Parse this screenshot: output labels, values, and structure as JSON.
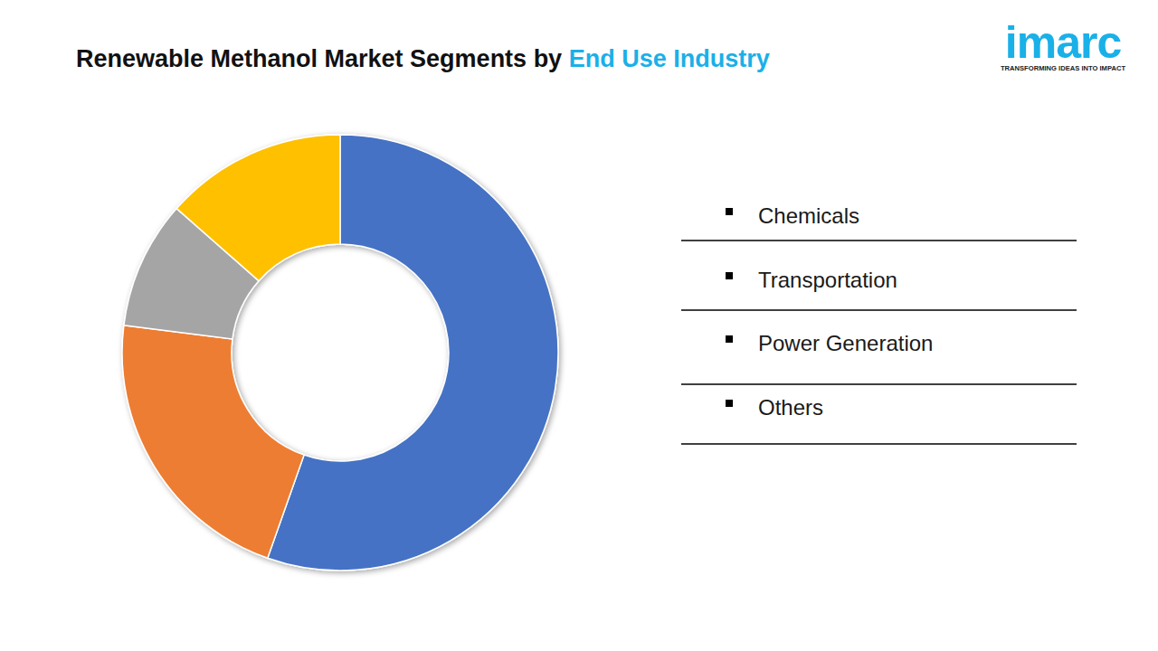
{
  "chart_data": {
    "type": "donut",
    "title": "Renewable Methanol Market Segments by End Use Industry",
    "title_highlight": "End Use Industry",
    "categories": [
      "Chemicals",
      "Transportation",
      "Power Generation",
      "Others"
    ],
    "values": [
      55.4,
      21.6,
      9.5,
      13.5
    ],
    "colors": [
      "#4472c4",
      "#ed7d31",
      "#a5a5a5",
      "#ffc000"
    ],
    "legend": "right",
    "data_labels": false
  },
  "logo": {
    "name": "imarc",
    "tagline": "TRANSFORMING IDEAS INTO IMPACT"
  }
}
